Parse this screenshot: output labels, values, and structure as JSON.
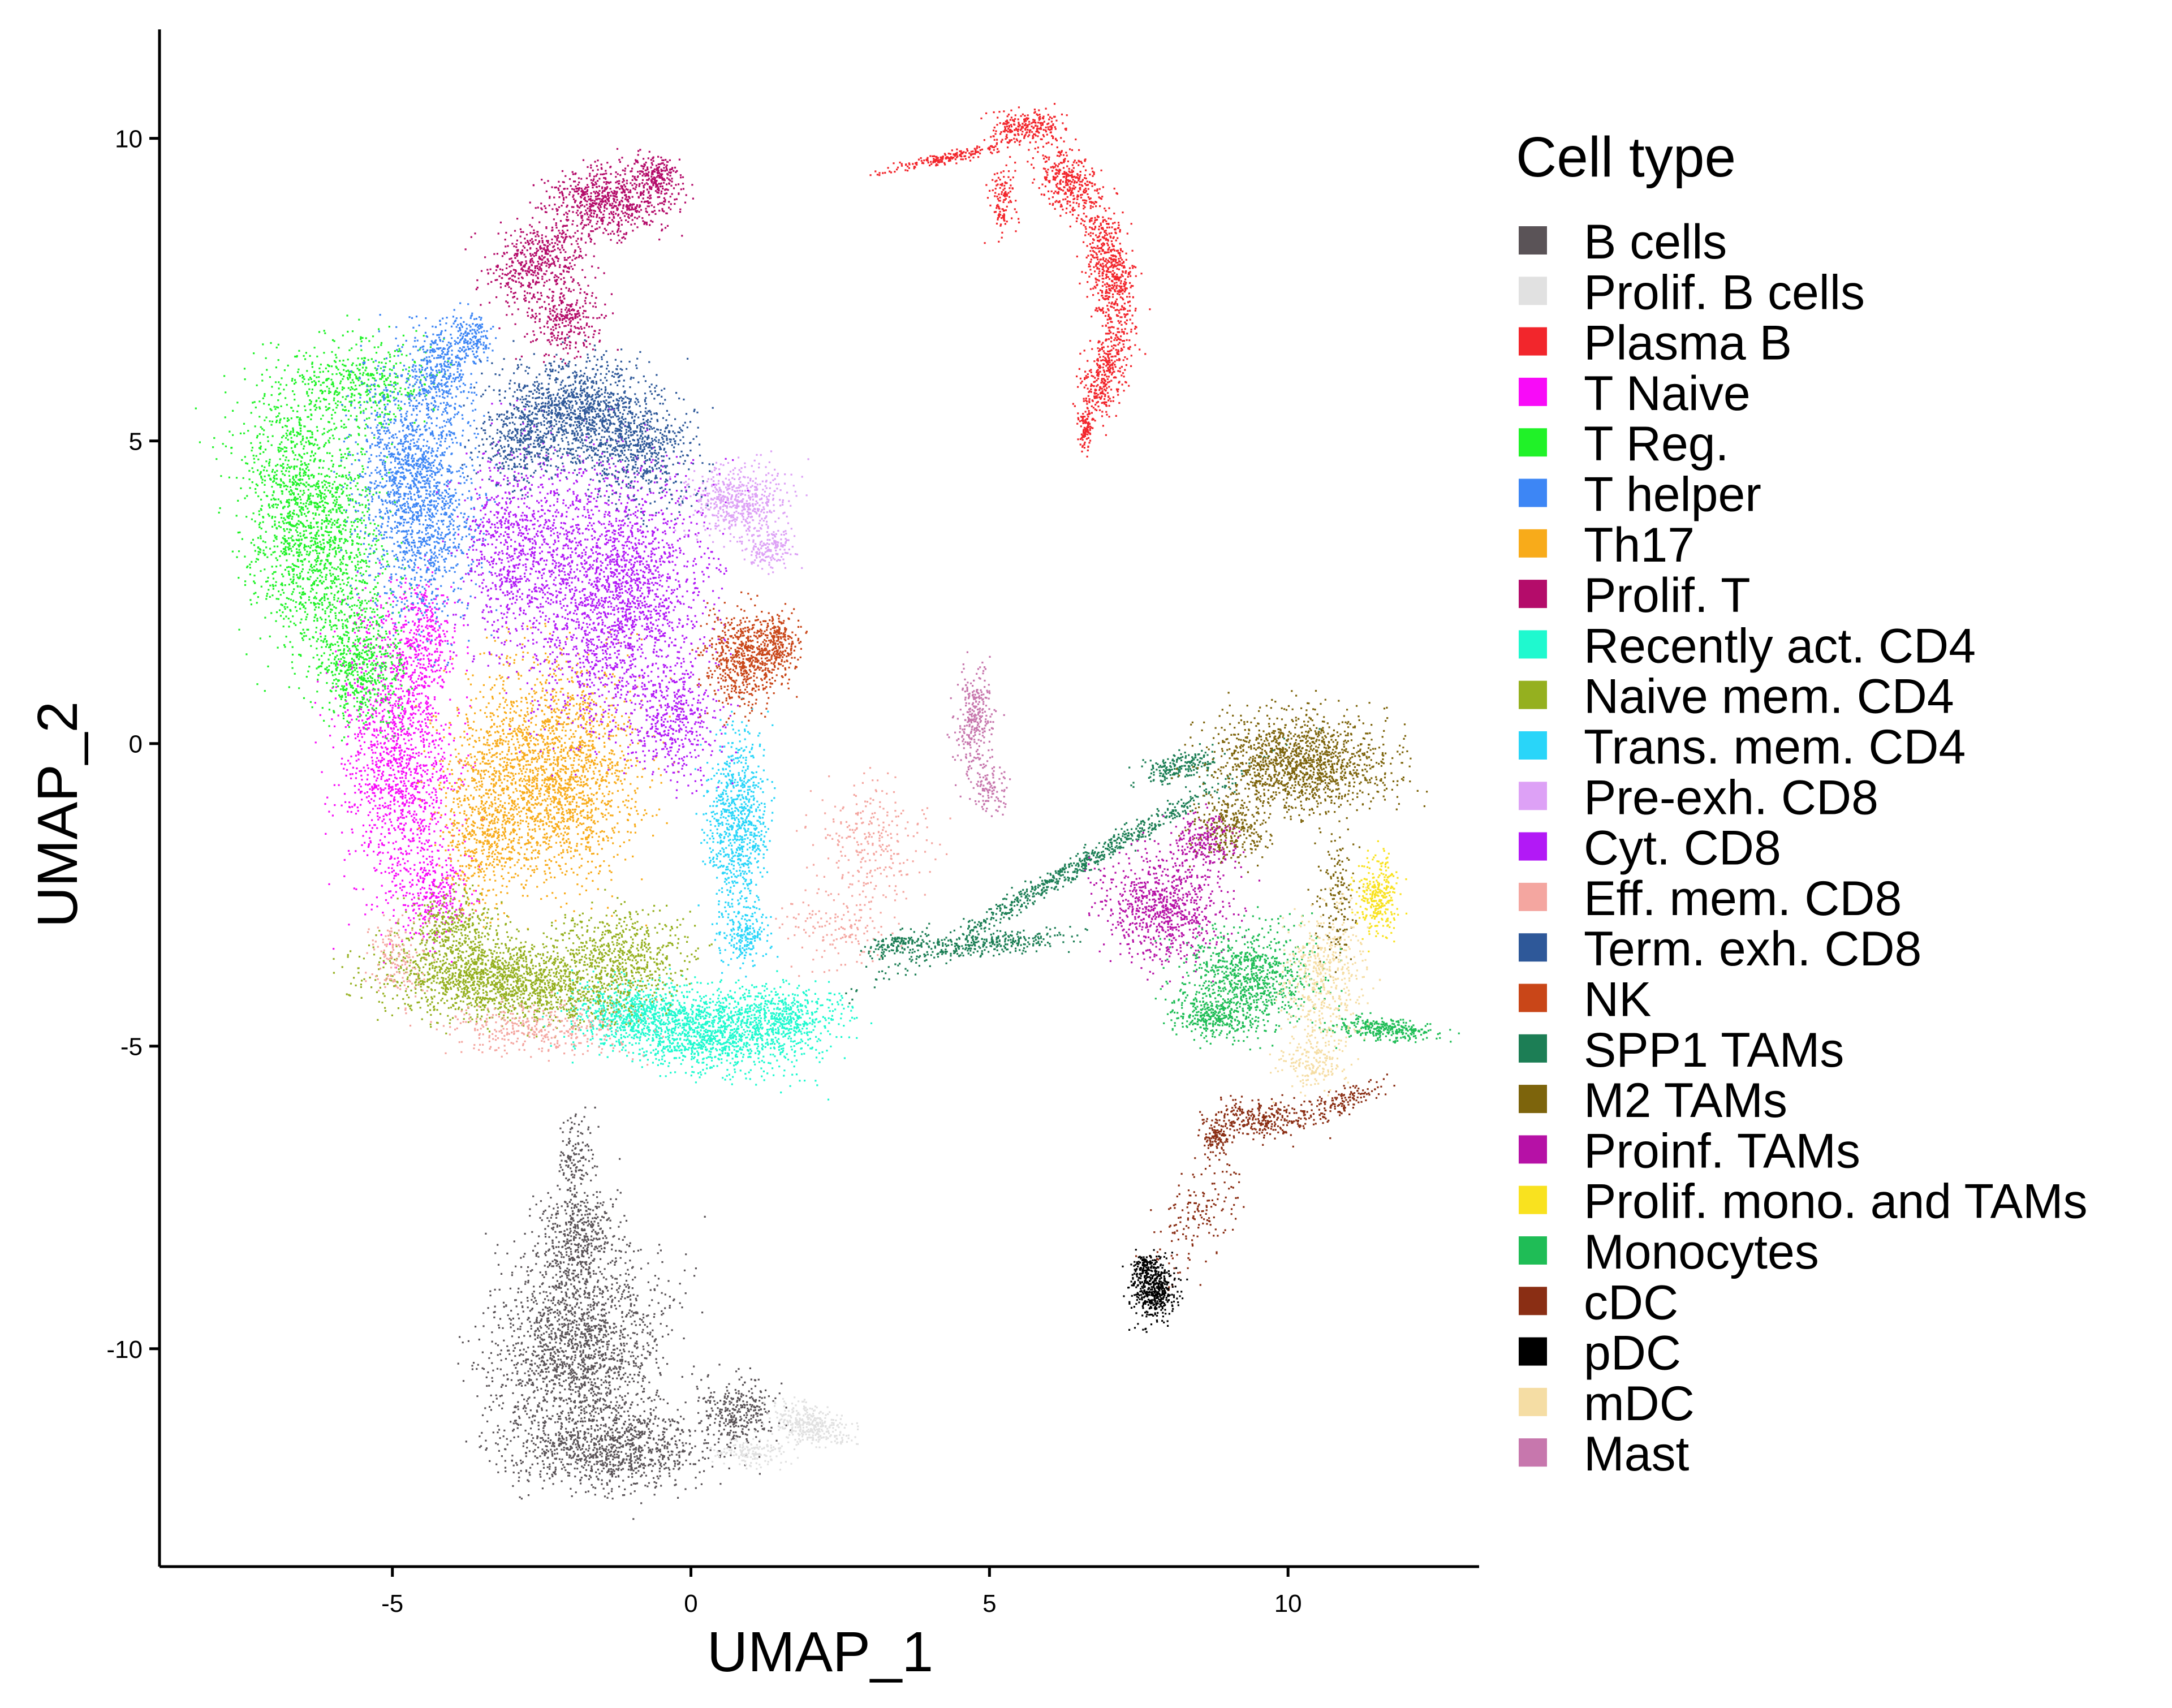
{
  "chart_data": {
    "type": "scatter",
    "title": "",
    "xlabel": "UMAP_1",
    "ylabel": "UMAP_2",
    "xlim": [
      -8.9,
      13.2
    ],
    "ylim": [
      -13.6,
      11.8
    ],
    "x_ticks": [
      -5,
      0,
      5,
      10
    ],
    "y_ticks": [
      -10,
      -5,
      0,
      5,
      10
    ],
    "x_tick_labels": [
      "-5",
      "0",
      "5",
      "10"
    ],
    "y_tick_labels": [
      "-10",
      "-5",
      "0",
      "5",
      "10"
    ],
    "grid": false,
    "legend_title": "Cell type",
    "legend_position": "right",
    "series": [
      {
        "name": "B cells",
        "color": "#5a5357",
        "blobs": [
          {
            "cx": -1.9,
            "cy": -10.0,
            "rx": 1.25,
            "ry": 1.65,
            "n": 1900,
            "rot": -10
          },
          {
            "cx": -1.3,
            "cy": -11.65,
            "rx": 1.6,
            "ry": 0.55,
            "n": 900,
            "rot": 0
          },
          {
            "cx": -1.9,
            "cy": -8.1,
            "rx": 0.55,
            "ry": 0.8,
            "n": 400,
            "rot": 0
          },
          {
            "cx": 0.8,
            "cy": -11.0,
            "rx": 0.55,
            "ry": 0.5,
            "n": 300,
            "rot": 0
          },
          {
            "cx": -1.95,
            "cy": -6.8,
            "rx": 0.25,
            "ry": 0.6,
            "n": 120,
            "rot": 0
          }
        ]
      },
      {
        "name": "Prolif. B cells",
        "color": "#e1e1e1",
        "blobs": [
          {
            "cx": 2.0,
            "cy": -11.25,
            "rx": 0.6,
            "ry": 0.3,
            "n": 350,
            "rot": -10
          },
          {
            "cx": 1.0,
            "cy": -11.7,
            "rx": 0.55,
            "ry": 0.2,
            "n": 150,
            "rot": 0
          }
        ]
      },
      {
        "name": "Plasma B",
        "color": "#f2262c",
        "blobs": [
          {
            "cx": 5.6,
            "cy": 10.2,
            "rx": 0.55,
            "ry": 0.25,
            "n": 250,
            "rot": 0
          },
          {
            "cx": 6.3,
            "cy": 9.3,
            "rx": 0.4,
            "ry": 0.6,
            "n": 350,
            "rot": 30
          },
          {
            "cx": 7.0,
            "cy": 7.8,
            "rx": 0.35,
            "ry": 1.1,
            "n": 600,
            "rot": 10
          },
          {
            "cx": 6.9,
            "cy": 6.1,
            "rx": 0.3,
            "ry": 0.7,
            "n": 350,
            "rot": -15
          },
          {
            "cx": 6.6,
            "cy": 5.2,
            "rx": 0.12,
            "ry": 0.3,
            "n": 90,
            "rot": 0
          },
          {
            "cx": 4.3,
            "cy": 9.7,
            "rx": 1.0,
            "ry": 0.09,
            "n": 200,
            "rot": 12
          },
          {
            "cx": 5.2,
            "cy": 9.0,
            "rx": 0.2,
            "ry": 0.5,
            "n": 120,
            "rot": 0
          }
        ]
      },
      {
        "name": "T Naive",
        "color": "#f80bf8",
        "blobs": [
          {
            "cx": -4.95,
            "cy": -0.2,
            "rx": 0.85,
            "ry": 2.2,
            "n": 1500,
            "rot": 5
          },
          {
            "cx": -4.5,
            "cy": 1.8,
            "rx": 0.5,
            "ry": 0.8,
            "n": 300,
            "rot": 0
          },
          {
            "cx": -4.3,
            "cy": -2.5,
            "rx": 0.5,
            "ry": 0.6,
            "n": 250,
            "rot": 0
          }
        ]
      },
      {
        "name": "T Reg.",
        "color": "#20f228",
        "blobs": [
          {
            "cx": -6.4,
            "cy": 3.7,
            "rx": 1.0,
            "ry": 2.0,
            "n": 1800,
            "rot": 10
          },
          {
            "cx": -5.6,
            "cy": 1.4,
            "rx": 0.7,
            "ry": 1.0,
            "n": 600,
            "rot": 15
          },
          {
            "cx": -5.5,
            "cy": 6.0,
            "rx": 1.1,
            "ry": 0.7,
            "n": 450,
            "rot": 0
          }
        ]
      },
      {
        "name": "T helper",
        "color": "#3d86f5",
        "blobs": [
          {
            "cx": -4.6,
            "cy": 4.2,
            "rx": 0.85,
            "ry": 1.9,
            "n": 1700,
            "rot": 5
          },
          {
            "cx": -4.2,
            "cy": 6.2,
            "rx": 0.5,
            "ry": 0.7,
            "n": 350,
            "rot": 0
          },
          {
            "cx": -3.7,
            "cy": 6.7,
            "rx": 0.35,
            "ry": 0.4,
            "n": 150,
            "rot": 0
          }
        ]
      },
      {
        "name": "Th17",
        "color": "#f8ab1a",
        "blobs": [
          {
            "cx": -2.4,
            "cy": -0.5,
            "rx": 1.4,
            "ry": 1.6,
            "n": 2200,
            "rot": 0
          },
          {
            "cx": -3.5,
            "cy": -1.5,
            "rx": 0.6,
            "ry": 1.2,
            "n": 400,
            "rot": 0
          }
        ]
      },
      {
        "name": "Prolif. T",
        "color": "#b40c6a",
        "blobs": [
          {
            "cx": -1.4,
            "cy": 9.0,
            "rx": 0.95,
            "ry": 0.55,
            "n": 700,
            "rot": 0
          },
          {
            "cx": -2.6,
            "cy": 8.0,
            "rx": 0.8,
            "ry": 0.6,
            "n": 500,
            "rot": 30
          },
          {
            "cx": -2.1,
            "cy": 7.0,
            "rx": 0.55,
            "ry": 0.5,
            "n": 300,
            "rot": 0
          },
          {
            "cx": -0.6,
            "cy": 9.4,
            "rx": 0.4,
            "ry": 0.3,
            "n": 200,
            "rot": 0
          }
        ]
      },
      {
        "name": "Recently act. CD4",
        "color": "#1ff9cf",
        "blobs": [
          {
            "cx": 0.0,
            "cy": -4.7,
            "rx": 1.6,
            "ry": 0.6,
            "n": 1500,
            "rot": -8
          },
          {
            "cx": 1.5,
            "cy": -4.5,
            "rx": 1.0,
            "ry": 0.5,
            "n": 500,
            "rot": 0
          },
          {
            "cx": -1.2,
            "cy": -4.4,
            "rx": 0.7,
            "ry": 0.4,
            "n": 300,
            "rot": 0
          }
        ]
      },
      {
        "name": "Naive mem. CD4",
        "color": "#95b01f",
        "blobs": [
          {
            "cx": -3.2,
            "cy": -3.9,
            "rx": 1.8,
            "ry": 0.6,
            "n": 1700,
            "rot": -5
          },
          {
            "cx": -1.2,
            "cy": -3.5,
            "rx": 1.0,
            "ry": 0.7,
            "n": 600,
            "rot": 0
          },
          {
            "cx": -4.0,
            "cy": -3.0,
            "rx": 0.7,
            "ry": 0.5,
            "n": 300,
            "rot": 0
          }
        ]
      },
      {
        "name": "Trans. mem. CD4",
        "color": "#29d5f9",
        "blobs": [
          {
            "cx": 0.75,
            "cy": -1.3,
            "rx": 0.45,
            "ry": 1.35,
            "n": 800,
            "rot": 0
          },
          {
            "cx": 0.9,
            "cy": -3.1,
            "rx": 0.35,
            "ry": 0.5,
            "n": 200,
            "rot": 0
          }
        ]
      },
      {
        "name": "Pre-exh. CD8",
        "color": "#dda1f6",
        "blobs": [
          {
            "cx": 0.8,
            "cy": 4.0,
            "rx": 0.75,
            "ry": 0.55,
            "n": 550,
            "rot": 0
          },
          {
            "cx": 1.3,
            "cy": 3.2,
            "rx": 0.35,
            "ry": 0.3,
            "n": 150,
            "rot": 0
          }
        ]
      },
      {
        "name": "Cyt. CD8",
        "color": "#b219f6",
        "blobs": [
          {
            "cx": -1.3,
            "cy": 2.5,
            "rx": 1.4,
            "ry": 2.0,
            "n": 2300,
            "rot": 0
          },
          {
            "cx": -3.0,
            "cy": 3.3,
            "rx": 0.8,
            "ry": 1.5,
            "n": 700,
            "rot": 0
          },
          {
            "cx": -0.3,
            "cy": 0.3,
            "rx": 0.7,
            "ry": 0.8,
            "n": 400,
            "rot": 0
          }
        ]
      },
      {
        "name": "Eff. mem. CD8",
        "color": "#f4a6a0",
        "blobs": [
          {
            "cx": 3.0,
            "cy": -1.6,
            "rx": 0.9,
            "ry": 0.9,
            "n": 260,
            "rot": 0
          },
          {
            "cx": -2.6,
            "cy": -4.7,
            "rx": 1.4,
            "ry": 0.4,
            "n": 350,
            "rot": 0
          },
          {
            "cx": -5.0,
            "cy": -3.5,
            "rx": 0.5,
            "ry": 0.6,
            "n": 150,
            "rot": 0
          },
          {
            "cx": 2.5,
            "cy": -3.0,
            "rx": 0.9,
            "ry": 0.6,
            "n": 150,
            "rot": 0
          }
        ]
      },
      {
        "name": "Term. exh. CD8",
        "color": "#2e5899",
        "blobs": [
          {
            "cx": -1.9,
            "cy": 5.5,
            "rx": 1.2,
            "ry": 0.8,
            "n": 1200,
            "rot": 0
          },
          {
            "cx": -0.8,
            "cy": 4.8,
            "rx": 0.8,
            "ry": 0.8,
            "n": 500,
            "rot": 0
          },
          {
            "cx": -2.9,
            "cy": 5.0,
            "rx": 0.6,
            "ry": 0.7,
            "n": 300,
            "rot": 0
          }
        ]
      },
      {
        "name": "NK",
        "color": "#c94618",
        "blobs": [
          {
            "cx": 0.9,
            "cy": 1.4,
            "rx": 0.6,
            "ry": 0.7,
            "n": 650,
            "rot": 0
          },
          {
            "cx": 1.45,
            "cy": 1.7,
            "rx": 0.35,
            "ry": 0.4,
            "n": 200,
            "rot": 0
          }
        ]
      },
      {
        "name": "SPP1 TAMs",
        "color": "#1c7e55",
        "blobs": [
          {
            "cx": 6.5,
            "cy": -2.0,
            "rx": 2.9,
            "ry": 0.16,
            "n": 700,
            "rot": 30
          },
          {
            "cx": 5.0,
            "cy": -3.3,
            "rx": 1.2,
            "ry": 0.18,
            "n": 300,
            "rot": 5
          },
          {
            "cx": 8.2,
            "cy": -0.35,
            "rx": 0.6,
            "ry": 0.2,
            "n": 200,
            "rot": 15
          },
          {
            "cx": 3.4,
            "cy": -3.3,
            "rx": 0.5,
            "ry": 0.15,
            "n": 120,
            "rot": 20
          }
        ]
      },
      {
        "name": "M2 TAMs",
        "color": "#7d640c",
        "blobs": [
          {
            "cx": 10.2,
            "cy": -0.3,
            "rx": 1.4,
            "ry": 0.75,
            "n": 1400,
            "rot": 0
          },
          {
            "cx": 9.0,
            "cy": -1.4,
            "rx": 0.6,
            "ry": 0.5,
            "n": 300,
            "rot": 0
          },
          {
            "cx": 10.8,
            "cy": -2.5,
            "rx": 0.3,
            "ry": 1.0,
            "n": 150,
            "rot": 0
          }
        ]
      },
      {
        "name": "Proinf. TAMs",
        "color": "#b611a6",
        "blobs": [
          {
            "cx": 7.9,
            "cy": -2.7,
            "rx": 1.0,
            "ry": 0.8,
            "n": 800,
            "rot": -15
          },
          {
            "cx": 8.6,
            "cy": -1.6,
            "rx": 0.5,
            "ry": 0.4,
            "n": 200,
            "rot": 0
          }
        ]
      },
      {
        "name": "Prolif. mono. and TAMs",
        "color": "#f9e21f",
        "blobs": [
          {
            "cx": 11.5,
            "cy": -2.5,
            "rx": 0.3,
            "ry": 0.65,
            "n": 300,
            "rot": 0
          }
        ]
      },
      {
        "name": "Monocytes",
        "color": "#1fbd56",
        "blobs": [
          {
            "cx": 9.3,
            "cy": -3.9,
            "rx": 1.0,
            "ry": 0.8,
            "n": 900,
            "rot": 0
          },
          {
            "cx": 11.6,
            "cy": -4.7,
            "rx": 0.8,
            "ry": 0.16,
            "n": 300,
            "rot": -5
          },
          {
            "cx": 8.7,
            "cy": -4.5,
            "rx": 0.6,
            "ry": 0.3,
            "n": 250,
            "rot": 0
          }
        ]
      },
      {
        "name": "cDC",
        "color": "#8a2e14",
        "blobs": [
          {
            "cx": 9.5,
            "cy": -6.2,
            "rx": 0.8,
            "ry": 0.3,
            "n": 300,
            "rot": 0
          },
          {
            "cx": 10.9,
            "cy": -5.9,
            "rx": 0.6,
            "ry": 0.2,
            "n": 150,
            "rot": 20
          },
          {
            "cx": 8.5,
            "cy": -7.8,
            "rx": 0.5,
            "ry": 1.0,
            "n": 160,
            "rot": -30
          },
          {
            "cx": 8.8,
            "cy": -6.5,
            "rx": 0.2,
            "ry": 0.3,
            "n": 100,
            "rot": 0
          }
        ]
      },
      {
        "name": "pDC",
        "color": "#000000",
        "blobs": [
          {
            "cx": 7.75,
            "cy": -9.0,
            "rx": 0.35,
            "ry": 0.45,
            "n": 450,
            "rot": 0
          },
          {
            "cx": 7.6,
            "cy": -8.6,
            "rx": 0.2,
            "ry": 0.2,
            "n": 100,
            "rot": 0
          }
        ]
      },
      {
        "name": "mDC",
        "color": "#f5dda4",
        "blobs": [
          {
            "cx": 10.6,
            "cy": -3.9,
            "rx": 0.6,
            "ry": 1.1,
            "n": 500,
            "rot": 0
          },
          {
            "cx": 10.4,
            "cy": -5.3,
            "rx": 0.5,
            "ry": 0.4,
            "n": 150,
            "rot": 0
          }
        ]
      },
      {
        "name": "Mast",
        "color": "#c777ad",
        "blobs": [
          {
            "cx": 4.75,
            "cy": 0.4,
            "rx": 0.3,
            "ry": 0.8,
            "n": 300,
            "rot": 0
          },
          {
            "cx": 5.0,
            "cy": -0.8,
            "rx": 0.3,
            "ry": 0.4,
            "n": 100,
            "rot": 0
          }
        ]
      }
    ]
  }
}
